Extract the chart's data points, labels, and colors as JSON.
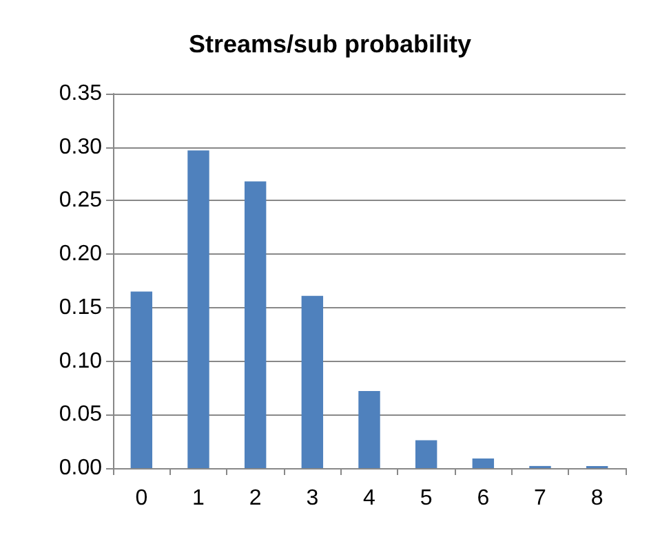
{
  "chart_data": {
    "type": "bar",
    "title": "Streams/sub probability",
    "categories": [
      "0",
      "1",
      "2",
      "3",
      "4",
      "5",
      "6",
      "7",
      "8"
    ],
    "values": [
      0.165,
      0.297,
      0.268,
      0.161,
      0.072,
      0.026,
      0.009,
      0.002,
      0.002
    ],
    "color": "#4f81bd",
    "ylim": [
      0,
      0.35
    ],
    "yticks": [
      {
        "value": 0,
        "label": "0.00"
      },
      {
        "value": 0.05,
        "label": "0.05"
      },
      {
        "value": 0.1,
        "label": "0.10"
      },
      {
        "value": 0.15,
        "label": "0.15"
      },
      {
        "value": 0.2,
        "label": "0.20"
      },
      {
        "value": 0.25,
        "label": "0.25"
      },
      {
        "value": 0.3,
        "label": "0.30"
      },
      {
        "value": 0.35,
        "label": "0.35"
      }
    ],
    "grid": "y"
  }
}
